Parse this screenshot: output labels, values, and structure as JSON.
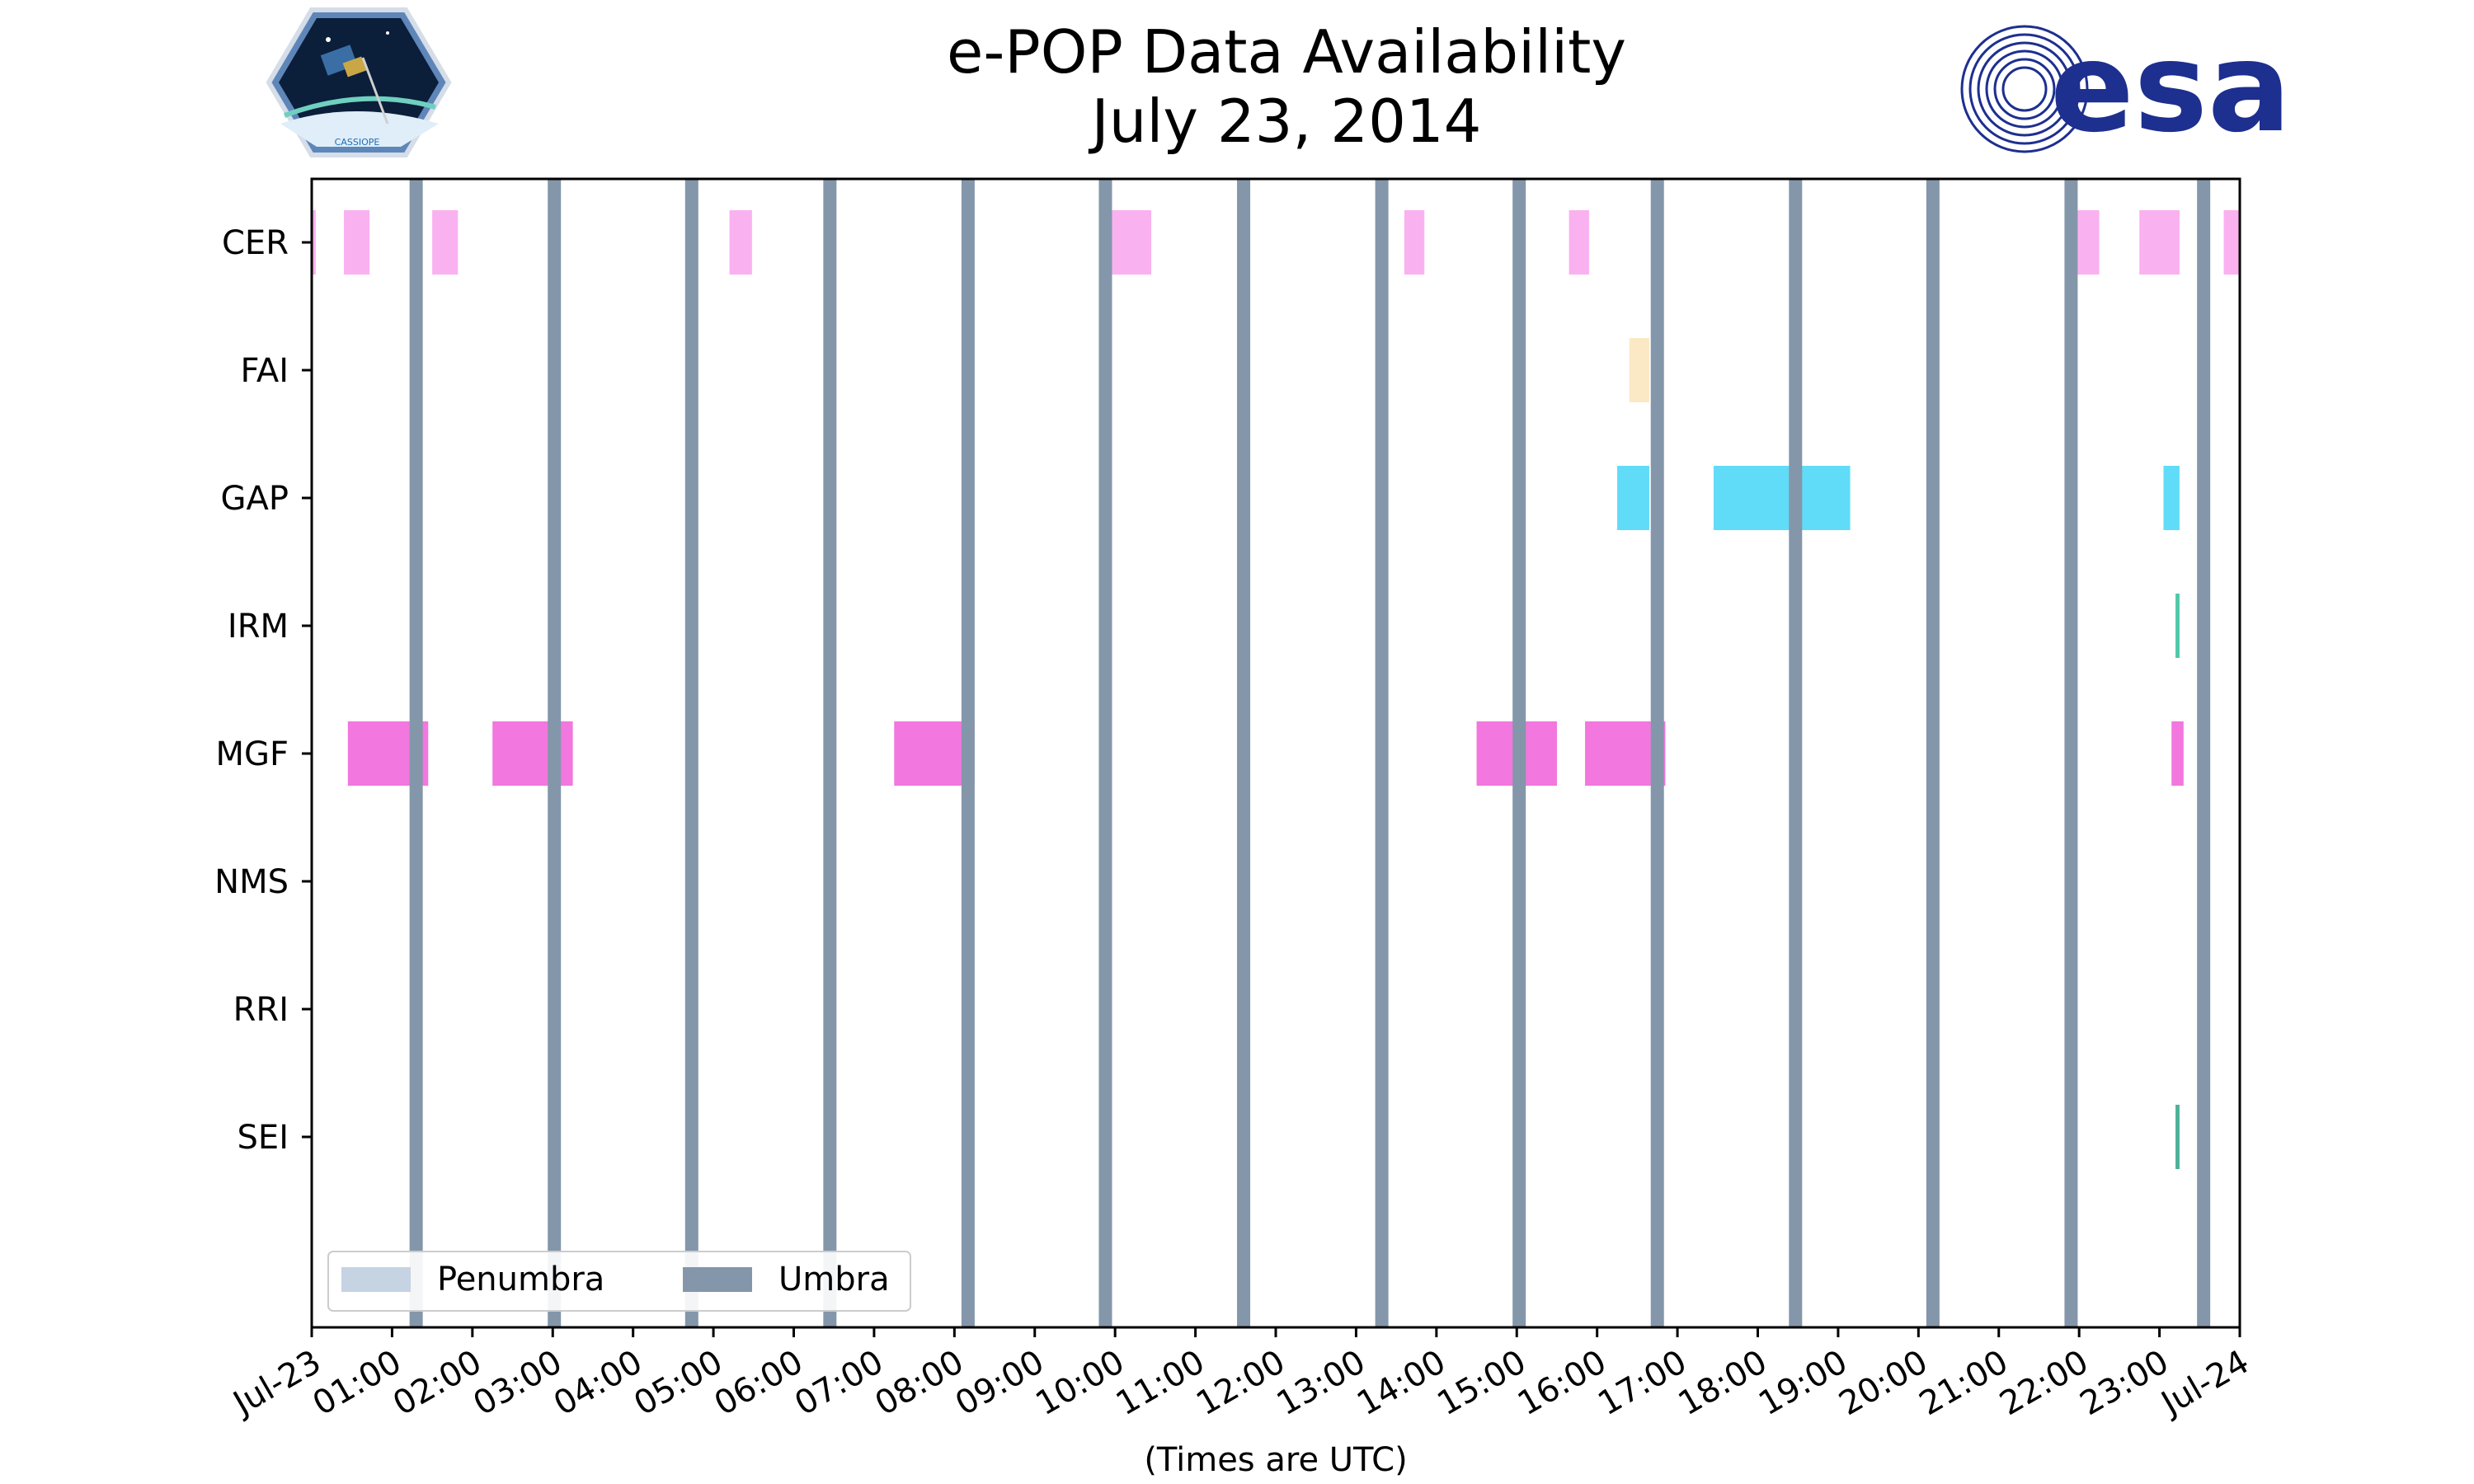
{
  "chart_data": {
    "type": "timeline",
    "title": [
      "e-POP Data Availability",
      "July 23, 2014"
    ],
    "xlabel": "(Times are UTC)",
    "x_range_hours": [
      0,
      24
    ],
    "x_tick_labels": [
      "Jul-23",
      "01:00",
      "02:00",
      "03:00",
      "04:00",
      "05:00",
      "06:00",
      "07:00",
      "08:00",
      "09:00",
      "10:00",
      "11:00",
      "12:00",
      "13:00",
      "14:00",
      "15:00",
      "16:00",
      "17:00",
      "18:00",
      "19:00",
      "20:00",
      "21:00",
      "22:00",
      "23:00",
      "Jul-24"
    ],
    "instruments": [
      "CER",
      "FAI",
      "GAP",
      "IRM",
      "MGF",
      "NMS",
      "RRI",
      "SEI"
    ],
    "availability": {
      "CER": [
        [
          0.0,
          0.05
        ],
        [
          0.4,
          0.72
        ],
        [
          1.5,
          1.82
        ],
        [
          5.2,
          5.48
        ],
        [
          9.95,
          10.45
        ],
        [
          13.6,
          13.85
        ],
        [
          15.65,
          15.9
        ],
        [
          21.9,
          22.25
        ],
        [
          22.75,
          23.25
        ],
        [
          23.8,
          24.0
        ]
      ],
      "FAI": [
        [
          16.4,
          16.65
        ]
      ],
      "GAP": [
        [
          16.25,
          16.65
        ],
        [
          17.45,
          19.15
        ],
        [
          23.05,
          23.25
        ]
      ],
      "IRM": [
        [
          23.2,
          23.25
        ]
      ],
      "MGF": [
        [
          0.45,
          1.45
        ],
        [
          2.25,
          3.25
        ],
        [
          7.25,
          8.25
        ],
        [
          14.5,
          15.5
        ],
        [
          15.85,
          16.85
        ],
        [
          23.15,
          23.3
        ]
      ],
      "NMS": [],
      "RRI": [],
      "SEI": [
        [
          23.2,
          23.25
        ]
      ]
    },
    "umbra_hours": [
      1.3,
      3.02,
      4.73,
      6.45,
      8.17,
      9.88,
      11.6,
      13.32,
      15.03,
      16.75,
      18.47,
      20.18,
      21.9,
      23.55
    ],
    "legend": {
      "position": "lower-left",
      "items": [
        {
          "label": "Penumbra",
          "color": "#c5d3e3"
        },
        {
          "label": "Umbra",
          "color": "#8496aa"
        }
      ]
    },
    "colors": {
      "CER": "#f9a8ee",
      "FAI": "#fbe7c0",
      "GAP": "#4fd8f7",
      "IRM": "#3cc29f",
      "MGF": "#f170dc",
      "NMS": "#8fa0b4",
      "RRI": "#8fa0b4",
      "SEI": "#3aa88e",
      "umbra": "#8496aa",
      "penumbra": "#c5d3e3"
    }
  },
  "logos": {
    "cassiope_text": "CASSIOPE",
    "esa_text": "esa"
  }
}
